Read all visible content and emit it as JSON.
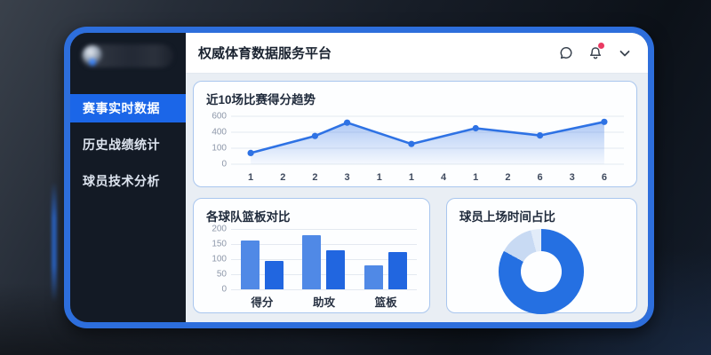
{
  "app": {
    "title": "权威体育数据服务平台"
  },
  "header": {
    "icons": [
      {
        "name": "message",
        "badge": false
      },
      {
        "name": "notifications",
        "badge": true
      },
      {
        "name": "chevron-down",
        "badge": false
      }
    ]
  },
  "sidebar": {
    "items": [
      {
        "label": "赛事实时数据",
        "active": true
      },
      {
        "label": "历史战绩统计",
        "active": false
      },
      {
        "label": "球员技术分析",
        "active": false
      }
    ]
  },
  "colors": {
    "frame_border": "#2d6edc",
    "sidebar_bg": "#131a25",
    "sidebar_active": "#1b66e8",
    "content_bg": "#e9eef4",
    "card_border": "#a9c6ee",
    "grid_line": "#e4e9f0",
    "axis_text": "#8d97a9",
    "line": "#2e72e4",
    "area_top": "rgba(62,122,227,0.38)",
    "area_bottom": "rgba(120,170,240,0.05)",
    "badge": "#ea3a62"
  },
  "chart_data": [
    {
      "type": "line",
      "title": "近10场比赛得分趋势",
      "x_labels": [
        "1",
        "2",
        "2",
        "3",
        "1",
        "1",
        "4",
        "1",
        "2",
        "6",
        "3",
        "6"
      ],
      "y_ticks": [
        600,
        400,
        100,
        0
      ],
      "points": [
        {
          "x_index": 0,
          "value": 70
        },
        {
          "x_index": 2,
          "value": 330
        },
        {
          "x_index": 3,
          "value": 520
        },
        {
          "x_index": 5,
          "value": 180
        },
        {
          "x_index": 7,
          "value": 450
        },
        {
          "x_index": 9,
          "value": 340
        },
        {
          "x_index": 11,
          "value": 530
        }
      ],
      "color": "#2e72e4",
      "area_fill": true,
      "grid": true,
      "legend": false
    },
    {
      "type": "bar",
      "title": "各球队篮板对比",
      "categories": [
        "得分",
        "助攻",
        "篮板"
      ],
      "y_ticks": [
        200,
        150,
        100,
        50,
        0
      ],
      "ylim": [
        0,
        200
      ],
      "series": [
        {
          "name": "series-1",
          "color": "#5089e6",
          "values": [
            162,
            178,
            80
          ]
        },
        {
          "name": "series-2",
          "color": "#2166e0",
          "values": [
            95,
            130,
            125
          ]
        }
      ],
      "grid": true,
      "legend": false
    },
    {
      "type": "donut",
      "title": "球员上场时间占比",
      "slices": [
        {
          "name": "slice-1",
          "value": 83,
          "color": "#2570e2"
        },
        {
          "name": "slice-2",
          "value": 13,
          "color": "#c8daf3"
        },
        {
          "name": "slice-3",
          "value": 4,
          "color": "#e2ecf9"
        }
      ],
      "legend": false
    }
  ]
}
